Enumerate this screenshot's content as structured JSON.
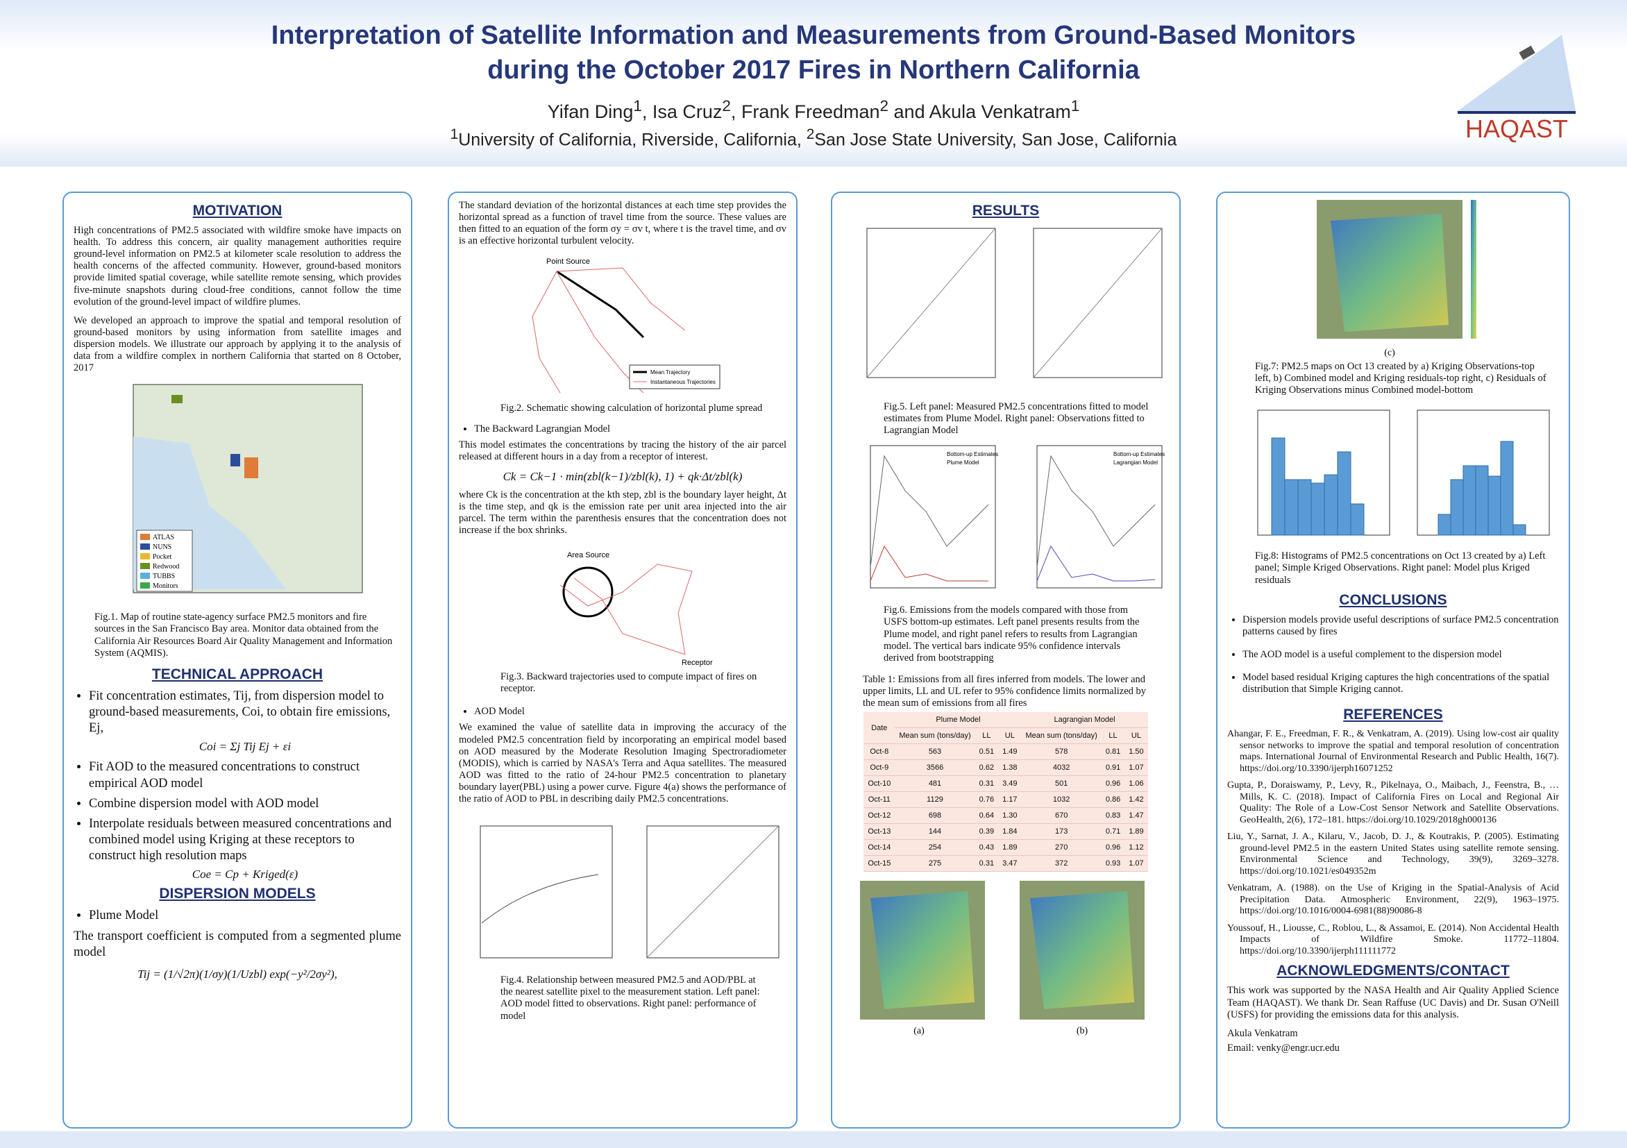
{
  "header": {
    "title": [
      "Interpretation of Satellite Information and Measurements from Ground-Based Monitors",
      "during the October 2017 Fires in Northern California"
    ],
    "authors": [
      {
        "name": "Yifan Ding",
        "sup": "1"
      },
      {
        "name": "Isa Cruz",
        "sup": "2"
      },
      {
        "name": "Frank Freedman",
        "sup": "2"
      },
      {
        "name": "Akula Venkatram",
        "sup": "1"
      }
    ],
    "author_separators": [
      ", ",
      ", ",
      " and "
    ],
    "affiliations": [
      {
        "sup": "1",
        "text": "University of California, Riverside, California, "
      },
      {
        "sup": "2",
        "text": "San Jose State University, San Jose, California"
      }
    ],
    "logo": "HAQAST"
  },
  "motivation": {
    "heading": "MOTIVATION",
    "paragraphs": [
      "High concentrations of PM2.5 associated with wildfire smoke have impacts on health. To address this concern, air quality management authorities require ground-level information on PM2.5 at kilometer scale resolution to address the health concerns of the affected community. However, ground-based monitors provide limited spatial coverage, while satellite remote sensing, which provides five-minute snapshots during cloud-free conditions, cannot follow the time evolution of the ground-level impact of wildfire plumes.",
      "We developed an approach to improve the spatial and temporal resolution of ground-based monitors by using information from satellite images and dispersion models. We illustrate our approach by applying it to the analysis of data from a wildfire complex in northern California that started on 8 October, 2017"
    ],
    "fig1": {
      "legend": [
        "ATLAS",
        "NUNS",
        "Pocket",
        "Redwood",
        "TUBBS",
        "Monitors"
      ],
      "caption": "Fig.1. Map of routine state-agency surface PM2.5 monitors and fire sources in the San Francisco Bay area. Monitor data obtained from the California Air Resources Board Air Quality Management and Information System (AQMIS)."
    }
  },
  "technical": {
    "heading": "TECHNICAL APPROACH",
    "bullets": [
      "Fit concentration estimates, Tij, from dispersion model to ground-based measurements, Coi, to obtain fire emissions, Ej,",
      "Fit AOD to the measured concentrations to construct empirical AOD model",
      "Combine dispersion model with AOD model",
      "Interpolate residuals between measured concentrations and combined model using Kriging at these receptors to construct high resolution maps"
    ],
    "equations": [
      "Coi = Σj Tij Ej + εi",
      "Coe = Cp + Kriged(ε)"
    ]
  },
  "dispersion": {
    "heading": "DISPERSION MODELS",
    "bullet": "Plume Model",
    "text": "The transport coefficient is computed from a segmented plume model",
    "equation": "Tij = (1/√2π)(1/σy)(1/Uzbl) exp(−y²/2σy²),"
  },
  "plume": {
    "paragraph": "The standard deviation of the horizontal distances at each time step provides the horizontal spread as a function of travel time from the source. These values are then fitted to an equation of the form σy = σv t, where t is the travel time, and σv is an effective horizontal turbulent velocity.",
    "fig2": {
      "labels": [
        "Point Source",
        "Mean Trajectory",
        "Instantaneous Trajectories"
      ],
      "caption": "Fig.2. Schematic showing calculation of horizontal plume spread"
    }
  },
  "backward": {
    "bullet": "The Backward Lagrangian Model",
    "paragraph": "This model estimates the concentrations by tracing the history of the air parcel released at different hours in a day from a receptor of interest.",
    "equation": "Ck = Ck−1 · min(zbl(k−1)/zbl(k), 1) + qk·Δt/zbl(k)",
    "paragraph2": "where Ck is the concentration at the kth step, zbl is the boundary layer height, Δt is the time step, and qk is the emission rate per unit area injected into the air parcel. The term within the parenthesis ensures that the concentration does not increase if the box shrinks.",
    "fig3": {
      "labels": [
        "Area Source",
        "Receptor"
      ],
      "caption": "Fig.3. Backward trajectories used to compute impact of fires on receptor."
    }
  },
  "aod": {
    "bullet": "AOD Model",
    "paragraph": "We examined the value of satellite data in improving the accuracy of the modeled PM2.5 concentration field by incorporating an empirical model based on AOD measured by the Moderate Resolution Imaging Spectroradiometer (MODIS), which is carried by NASA's Terra and Aqua satellites. The measured AOD was fitted to the ratio of 24-hour PM2.5 concentration to planetary boundary layer(PBL) using a power curve. Figure 4(a) shows the performance of the ratio of AOD to PBL in describing daily PM2.5 concentrations.",
    "fig4": {
      "caption": "Fig.4. Relationship between measured PM2.5 and AOD/PBL at the nearest satellite pixel to the measurement station. Left panel: AOD model fitted to observations. Right panel: performance of model"
    }
  },
  "results": {
    "heading": "RESULTS",
    "fig5": {
      "caption": "Fig.5. Left panel: Measured PM2.5 concentrations fitted to model estimates from Plume Model. Right panel: Observations fitted to Lagrangian Model"
    },
    "fig6": {
      "legend": [
        "Bottom-up Estimates",
        "Plume Model",
        "Lagrangian Model"
      ],
      "caption": "Fig.6. Emissions from the models compared with those from USFS bottom-up estimates. Left panel presents results from the Plume model, and right panel refers to results from Lagrangian model. The vertical bars indicate 95% confidence intervals derived from bootstrapping"
    },
    "table": {
      "caption": "Table 1: Emissions from all fires inferred from models. The lower and upper limits, LL and UL refer to 95% confidence limits normalized by the mean sum of emissions from all fires",
      "header": [
        "Date",
        "Plume Model",
        "Lagrangian Model"
      ],
      "subheader": [
        "Mean sum (tons/day)",
        "LL",
        "UL",
        "Mean sum (tons/day)",
        "LL",
        "UL"
      ],
      "rows": [
        [
          "Oct-8",
          "563",
          "0.51",
          "1.49",
          "578",
          "0.81",
          "1.50"
        ],
        [
          "Oct-9",
          "3566",
          "0.62",
          "1.38",
          "4032",
          "0.91",
          "1.07"
        ],
        [
          "Oct-10",
          "481",
          "0.31",
          "3.49",
          "501",
          "0.96",
          "1.06"
        ],
        [
          "Oct-11",
          "1129",
          "0.76",
          "1.17",
          "1032",
          "0.86",
          "1.42"
        ],
        [
          "Oct-12",
          "698",
          "0.64",
          "1.30",
          "670",
          "0.83",
          "1.47"
        ],
        [
          "Oct-13",
          "144",
          "0.39",
          "1.84",
          "173",
          "0.71",
          "1.89"
        ],
        [
          "Oct-14",
          "254",
          "0.43",
          "1.89",
          "270",
          "0.96",
          "1.12"
        ],
        [
          "Oct-15",
          "275",
          "0.31",
          "3.47",
          "372",
          "0.93",
          "1.07"
        ]
      ]
    },
    "fig7_panels": [
      "(a)",
      "(b)"
    ]
  },
  "fig7": {
    "panel": "(c)",
    "caption": "Fig.7: PM2.5 maps on Oct 13 created by a) Kriging Observations-top left, b) Combined model and Kriging residuals-top right, c) Residuals of Kriging Observations minus Combined model-bottom"
  },
  "fig8": {
    "caption": "Fig.8: Histograms of PM2.5 concentrations on Oct 13 created by a) Left panel; Simple Kriged Observations. Right panel: Model plus Kriged residuals"
  },
  "conclusions": {
    "heading": "CONCLUSIONS",
    "bullets": [
      "Dispersion models provide useful descriptions of surface PM2.5 concentration patterns caused by fires",
      "The AOD model is a useful complement to the dispersion model",
      "Model based residual Kriging captures the high concentrations of the spatial distribution that Simple Kriging cannot."
    ]
  },
  "references": {
    "heading": "REFERENCES",
    "items": [
      "Ahangar, F. E., Freedman, F. R., & Venkatram, A. (2019). Using low-cost air quality sensor networks to improve the spatial and temporal resolution of concentration maps. International Journal of Environmental Research and Public Health, 16(7). https://doi.org/10.3390/ijerph16071252",
      "Gupta, P., Doraiswamy, P., Levy, R., Pikelnaya, O., Maibach, J., Feenstra, B., … Mills, K. C. (2018). Impact of California Fires on Local and Regional Air Quality: The Role of a Low-Cost Sensor Network and Satellite Observations. GeoHealth, 2(6), 172–181. https://doi.org/10.1029/2018gh000136",
      "Liu, Y., Sarnat, J. A., Kilaru, V., Jacob, D. J., & Koutrakis, P. (2005). Estimating ground-level PM2.5 in the eastern United States using satellite remote sensing. Environmental Science and Technology, 39(9), 3269–3278. https://doi.org/10.1021/es049352m",
      "Venkatram, A. (1988). on the Use of Kriging in the Spatial-Analysis of Acid Precipitation Data. Atmospheric Environment, 22(9), 1963–1975. https://doi.org/10.1016/0004-6981(88)90086-8",
      "Youssouf, H., Liousse, C., Roblou, L., & Assamoi, E. (2014). Non Accidental Health Impacts of Wildfire Smoke. 11772–11804. https://doi.org/10.3390/ijerph111111772"
    ]
  },
  "acknowledgments": {
    "heading": "ACKNOWLEDGMENTS/CONTACT",
    "text": "This work was supported by the NASA Health and Air Quality Applied Science Team (HAQAST). We thank Dr. Sean Raffuse (UC Davis) and Dr. Susan O'Neill (USFS) for providing the emissions data for this analysis.",
    "name": "Akula Venkatram",
    "email": "Email: venky@engr.ucr.edu"
  }
}
